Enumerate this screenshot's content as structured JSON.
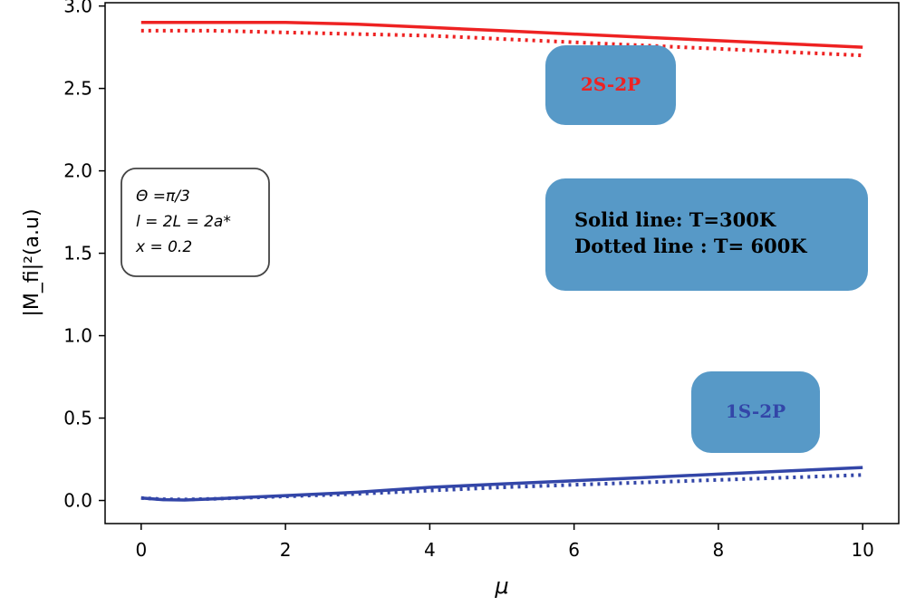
{
  "chart_data": {
    "type": "line",
    "title": "",
    "xlabel": "μ",
    "ylabel": "|M_fi|²(a.u)",
    "xlim": [
      -0.5,
      10.5
    ],
    "ylim": [
      -0.14,
      3.02
    ],
    "x_ticks": [
      0,
      2,
      4,
      6,
      8,
      10
    ],
    "y_ticks": [
      0.0,
      0.5,
      1.0,
      1.5,
      2.0,
      2.5,
      3.0
    ],
    "x_tick_labels": [
      "0",
      "2",
      "4",
      "6",
      "8",
      "10"
    ],
    "y_tick_labels": [
      "0.0",
      "0.5",
      "1.0",
      "1.5",
      "2.0",
      "2.5",
      "3.0"
    ],
    "grid": false,
    "series": [
      {
        "key": "2s2p-300",
        "style": "solid",
        "color": "#ee2222",
        "x": [
          0,
          1,
          2,
          3,
          4,
          5,
          6,
          7,
          8,
          9,
          10
        ],
        "y": [
          2.9,
          2.9,
          2.9,
          2.89,
          2.87,
          2.85,
          2.83,
          2.81,
          2.79,
          2.77,
          2.75
        ]
      },
      {
        "key": "2s2p-600",
        "style": "dotted",
        "color": "#ee2222",
        "x": [
          0,
          1,
          2,
          3,
          4,
          5,
          6,
          7,
          8,
          9,
          10
        ],
        "y": [
          2.85,
          2.85,
          2.84,
          2.83,
          2.82,
          2.8,
          2.78,
          2.76,
          2.74,
          2.72,
          2.7
        ]
      },
      {
        "key": "1s2p-300",
        "style": "solid",
        "color": "#3346a8",
        "x": [
          0,
          0.3,
          0.6,
          1,
          2,
          3,
          4,
          5,
          6,
          7,
          8,
          9,
          10
        ],
        "y": [
          0.015,
          0.005,
          0.003,
          0.01,
          0.03,
          0.05,
          0.08,
          0.1,
          0.12,
          0.14,
          0.16,
          0.18,
          0.2
        ]
      },
      {
        "key": "1s2p-600",
        "style": "dotted",
        "color": "#3346a8",
        "x": [
          0,
          0.3,
          0.6,
          1,
          2,
          3,
          4,
          5,
          6,
          7,
          8,
          9,
          10
        ],
        "y": [
          0.015,
          0.008,
          0.006,
          0.01,
          0.025,
          0.04,
          0.06,
          0.08,
          0.095,
          0.11,
          0.125,
          0.14,
          0.155
        ]
      }
    ],
    "annotations": {
      "label_2s2p": "2S-2P",
      "label_1s2p": "1S-2P",
      "legend_solid": "Solid line: T=300K",
      "legend_dotted": "Dotted line : T= 600K",
      "params": [
        "Θ =π/3",
        "l = 2L = 2a*",
        "x = 0.2"
      ]
    },
    "colors": {
      "box_fill": "#5799c7",
      "label_2s2p": "#ee2222",
      "label_1s2p": "#3346a8"
    }
  }
}
